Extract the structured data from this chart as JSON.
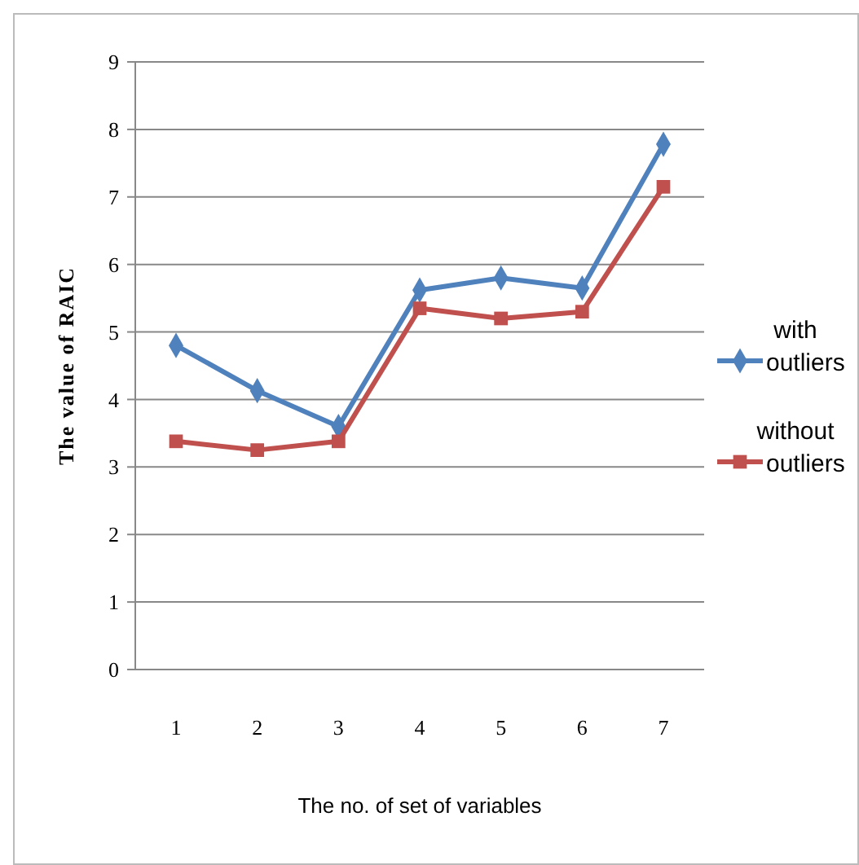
{
  "chart_data": {
    "type": "line",
    "xlabel": "The no. of set of variables",
    "ylabel": "The value of RAIC",
    "categories": [
      "1",
      "2",
      "3",
      "4",
      "5",
      "6",
      "7"
    ],
    "ylim": [
      0,
      9
    ],
    "yticks": [
      0,
      1,
      2,
      3,
      4,
      5,
      6,
      7,
      8,
      9
    ],
    "grid": "y",
    "legend": "right",
    "series": [
      {
        "name": "with outliers",
        "color": "#4f81bd",
        "marker": "diamond",
        "values": [
          4.8,
          4.13,
          3.6,
          5.62,
          5.8,
          5.65,
          7.78
        ]
      },
      {
        "name": "without outliers",
        "color": "#c0504d",
        "marker": "square",
        "values": [
          3.38,
          3.25,
          3.38,
          5.35,
          5.2,
          5.3,
          7.15
        ]
      }
    ]
  }
}
